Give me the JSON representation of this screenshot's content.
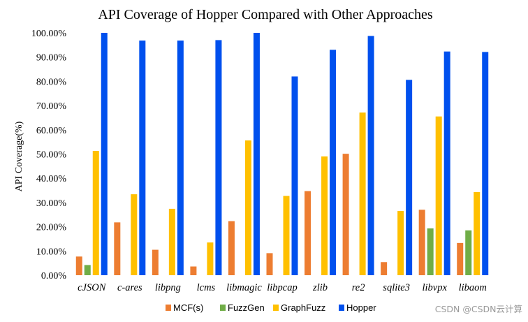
{
  "watermark": "CSDN @CSDN云计算",
  "chart_data": {
    "type": "bar",
    "title": "API Coverage of Hopper Compared with Other Approaches",
    "xlabel": "",
    "ylabel": "API Coverage(%)",
    "ylim": [
      0,
      100
    ],
    "ytick_values": [
      0,
      10,
      20,
      30,
      40,
      50,
      60,
      70,
      80,
      90,
      100
    ],
    "ytick_labels": [
      "0.00%",
      "10.00%",
      "20.00%",
      "30.00%",
      "40.00%",
      "50.00%",
      "60.00%",
      "70.00%",
      "80.00%",
      "90.00%",
      "100.00%"
    ],
    "categories": [
      "cJSON",
      "c-ares",
      "libpng",
      "lcms",
      "libmagic",
      "libpcap",
      "zlib",
      "re2",
      "sqlite3",
      "libvpx",
      "libaom"
    ],
    "legend_position": "bottom",
    "grid": false,
    "series": [
      {
        "name": "MCF(s)",
        "color": "#ED7D31",
        "values": [
          7.7,
          21.8,
          10.5,
          3.6,
          22.3,
          9.1,
          34.7,
          50.1,
          5.4,
          27.0,
          13.3
        ]
      },
      {
        "name": "FuzzGen",
        "color": "#70AD47",
        "values": [
          4.2,
          0,
          0,
          0,
          0,
          0,
          0,
          0,
          0,
          19.3,
          18.5
        ]
      },
      {
        "name": "GraphFuzz",
        "color": "#FFC000",
        "values": [
          51.3,
          33.4,
          27.4,
          13.5,
          55.6,
          32.7,
          49.0,
          67.1,
          26.5,
          65.5,
          34.3
        ]
      },
      {
        "name": "Hopper",
        "color": "#0050EE",
        "values": [
          100.0,
          96.8,
          96.8,
          97.0,
          100.0,
          82.0,
          93.0,
          98.7,
          80.6,
          92.3,
          92.1
        ]
      }
    ]
  }
}
